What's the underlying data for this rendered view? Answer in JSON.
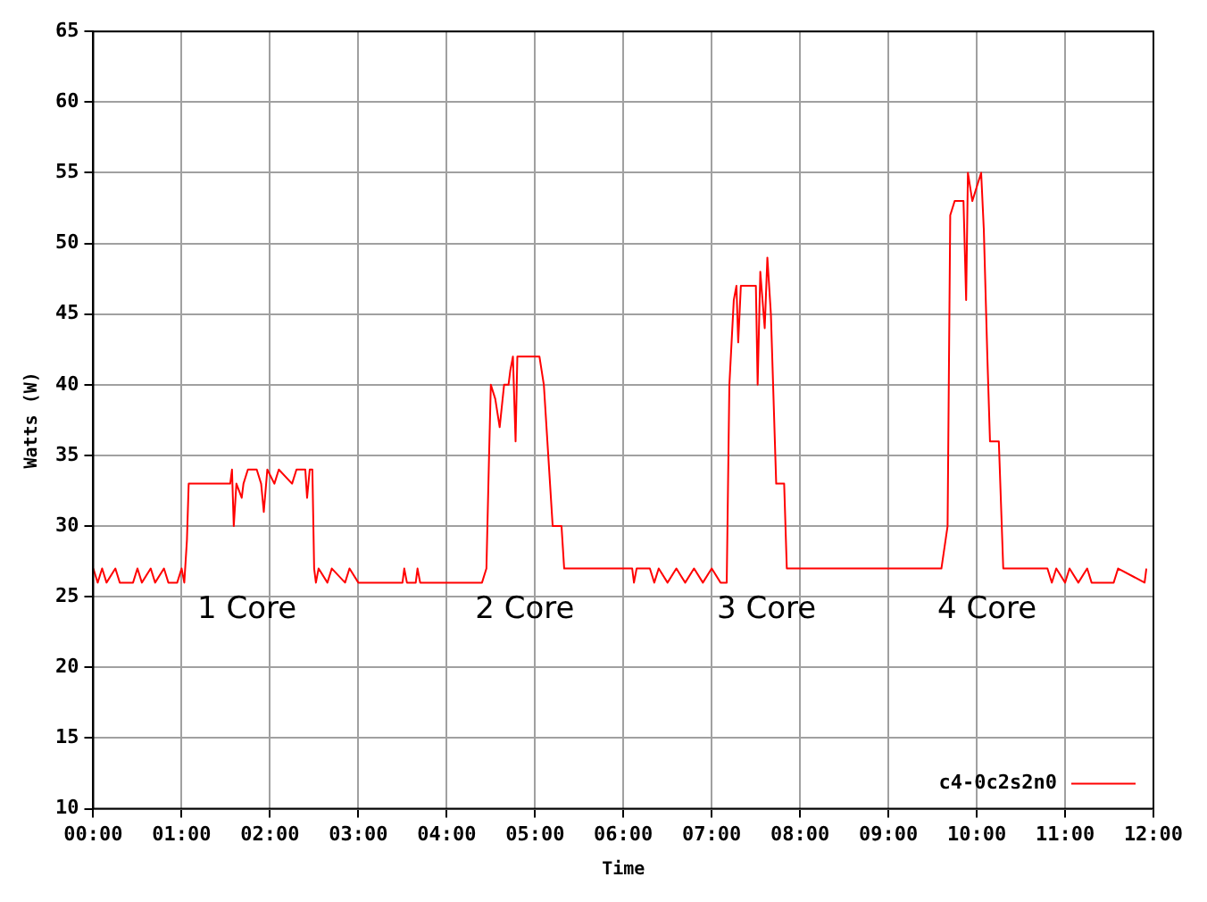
{
  "chart_data": {
    "type": "line",
    "xlabel": "Time",
    "ylabel": "Watts (W)",
    "xlim": [
      0,
      12
    ],
    "xticks": [
      {
        "value": 0,
        "label": "00:00"
      },
      {
        "value": 1,
        "label": "01:00"
      },
      {
        "value": 2,
        "label": "02:00"
      },
      {
        "value": 3,
        "label": "03:00"
      },
      {
        "value": 4,
        "label": "04:00"
      },
      {
        "value": 5,
        "label": "05:00"
      },
      {
        "value": 6,
        "label": "06:00"
      },
      {
        "value": 7,
        "label": "07:00"
      },
      {
        "value": 8,
        "label": "08:00"
      },
      {
        "value": 9,
        "label": "09:00"
      },
      {
        "value": 10,
        "label": "10:00"
      },
      {
        "value": 11,
        "label": "11:00"
      },
      {
        "value": 12,
        "label": "12:00"
      }
    ],
    "ylim": [
      10,
      65
    ],
    "yticks": [
      10,
      15,
      20,
      25,
      30,
      35,
      40,
      45,
      50,
      55,
      60,
      65
    ],
    "grid": true,
    "legend": "bottom right",
    "marker": "none",
    "line_style": "solid",
    "annotations": [
      "1 Core",
      "2 Core",
      "3 Core",
      "4 Core"
    ],
    "series": [
      {
        "name": "c4-0c2s2n0",
        "color": "#ff0000",
        "x": [
          0,
          0.05,
          0.1,
          0.15,
          0.25,
          0.3,
          0.45,
          0.5,
          0.55,
          0.65,
          0.7,
          0.8,
          0.85,
          0.95,
          1.0,
          1.03,
          1.06,
          1.08,
          1.55,
          1.57,
          1.59,
          1.62,
          1.68,
          1.7,
          1.75,
          1.85,
          1.9,
          1.93,
          1.97,
          2.05,
          2.1,
          2.25,
          2.3,
          2.4,
          2.42,
          2.45,
          2.48,
          2.5,
          2.52,
          2.55,
          2.65,
          2.7,
          2.85,
          2.9,
          3.0,
          3.5,
          3.52,
          3.55,
          3.65,
          3.67,
          3.7,
          4.4,
          4.45,
          4.48,
          4.5,
          4.55,
          4.6,
          4.65,
          4.7,
          4.72,
          4.75,
          4.78,
          4.8,
          5.05,
          5.1,
          5.15,
          5.2,
          5.3,
          5.33,
          6.1,
          6.12,
          6.15,
          6.3,
          6.35,
          6.4,
          6.5,
          6.6,
          6.7,
          6.8,
          6.9,
          7.0,
          7.1,
          7.17,
          7.2,
          7.25,
          7.28,
          7.3,
          7.33,
          7.5,
          7.52,
          7.55,
          7.6,
          7.63,
          7.67,
          7.7,
          7.73,
          7.82,
          7.85,
          9.6,
          9.67,
          9.7,
          9.75,
          9.85,
          9.88,
          9.9,
          9.95,
          10.0,
          10.05,
          10.08,
          10.12,
          10.15,
          10.25,
          10.3,
          10.8,
          10.85,
          10.9,
          11.0,
          11.05,
          11.15,
          11.25,
          11.3,
          11.55,
          11.6,
          11.9,
          11.92
        ],
        "values": [
          27,
          26,
          27,
          26,
          27,
          26,
          26,
          27,
          26,
          27,
          26,
          27,
          26,
          26,
          27,
          26,
          29,
          33,
          33,
          34,
          30,
          33,
          32,
          33,
          34,
          34,
          33,
          31,
          34,
          33,
          34,
          33,
          34,
          34,
          32,
          34,
          34,
          27,
          26,
          27,
          26,
          27,
          26,
          27,
          26,
          26,
          27,
          26,
          26,
          27,
          26,
          26,
          27,
          35,
          40,
          39,
          37,
          40,
          40,
          41,
          42,
          36,
          42,
          42,
          40,
          35,
          30,
          30,
          27,
          27,
          26,
          27,
          27,
          26,
          27,
          26,
          27,
          26,
          27,
          26,
          27,
          26,
          26,
          40,
          46,
          47,
          43,
          47,
          47,
          40,
          48,
          44,
          49,
          45,
          39,
          33,
          33,
          27,
          27,
          30,
          52,
          53,
          53,
          46,
          55,
          53,
          54,
          55,
          51,
          42,
          36,
          36,
          27,
          27,
          26,
          27,
          26,
          27,
          26,
          27,
          26,
          26,
          27,
          26,
          27
        ]
      }
    ]
  }
}
